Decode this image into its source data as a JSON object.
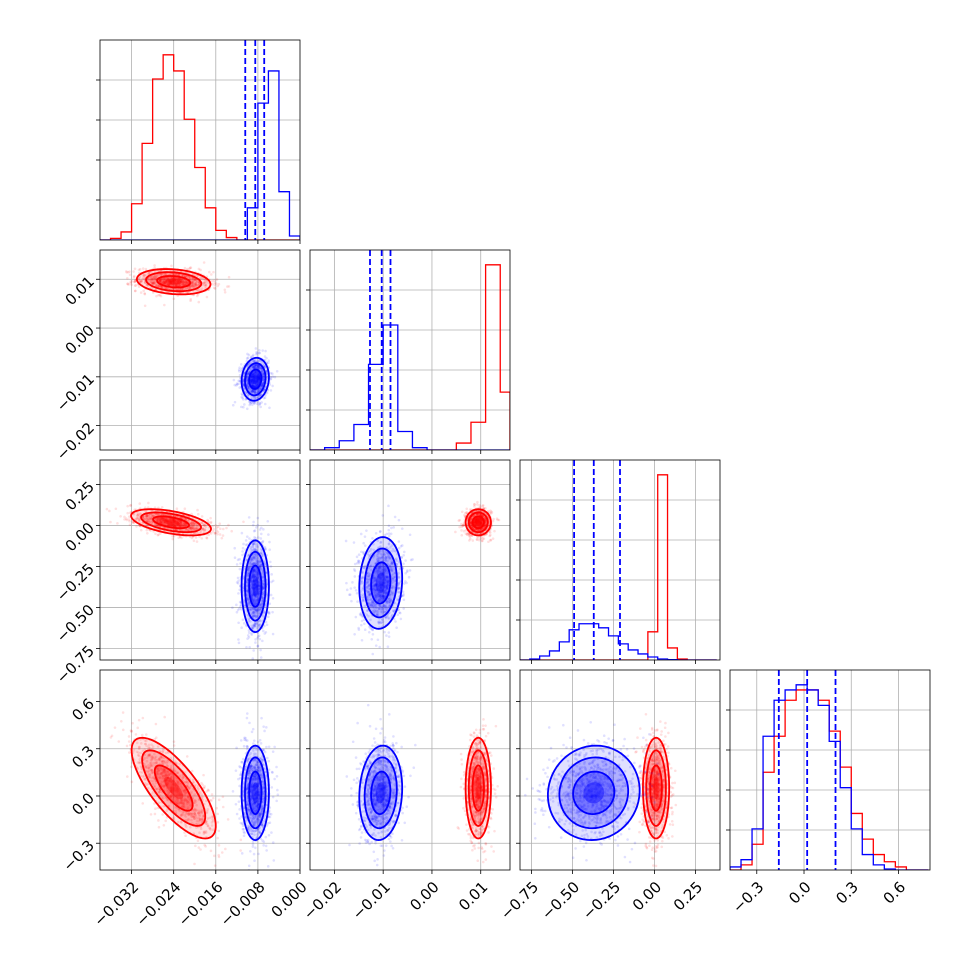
{
  "chart_data": {
    "type": "corner",
    "title": "",
    "parameters": [
      "",
      "",
      "",
      ""
    ],
    "series": [
      {
        "name": "",
        "color": "#ff0000"
      },
      {
        "name": "",
        "color": "#0000ff"
      }
    ],
    "grid": true,
    "axes": [
      {
        "range": [
          -0.038,
          0.0
        ],
        "ticks": [
          -0.032,
          -0.024,
          -0.016,
          -0.008,
          0.0
        ],
        "tick_labels": [
          "−0.032",
          "−0.024",
          "−0.016",
          "−0.008",
          "0.000"
        ]
      },
      {
        "range": [
          -0.025,
          0.016
        ],
        "ticks": [
          -0.02,
          -0.01,
          0.0,
          0.01
        ],
        "tick_labels": [
          "−0.02",
          "−0.01",
          "0.00",
          "0.01"
        ]
      },
      {
        "range": [
          -0.82,
          0.4
        ],
        "ticks": [
          -0.75,
          -0.5,
          -0.25,
          0.0,
          0.25
        ],
        "tick_labels": [
          "−0.75",
          "−0.50",
          "−0.25",
          "0.00",
          "0.25"
        ]
      },
      {
        "range": [
          -0.47,
          0.8
        ],
        "ticks": [
          -0.3,
          0.0,
          0.3,
          0.6
        ],
        "tick_labels": [
          "−0.3",
          "0.0",
          "0.3",
          "0.6"
        ]
      }
    ],
    "quantiles_blue": [
      [
        -0.0104,
        -0.0085,
        -0.0068
      ],
      [
        -0.0127,
        -0.0103,
        -0.0085
      ],
      [
        -0.49,
        -0.37,
        -0.21
      ],
      [
        -0.16,
        0.02,
        0.2
      ]
    ],
    "marginals": [
      {
        "bin_edges": [
          -0.038,
          -0.036,
          -0.034,
          -0.032,
          -0.03,
          -0.028,
          -0.026,
          -0.024,
          -0.022,
          -0.02,
          -0.018,
          -0.016,
          -0.014,
          -0.012,
          -0.01,
          -0.008,
          -0.006,
          -0.004,
          -0.002,
          0.0
        ],
        "red": [
          0,
          2,
          10,
          45,
          120,
          200,
          230,
          210,
          150,
          90,
          40,
          12,
          3,
          0,
          0,
          0,
          0,
          0,
          0
        ],
        "blue": [
          0,
          0,
          0,
          0,
          0,
          0,
          0,
          0,
          0,
          0,
          0,
          0,
          0,
          0,
          40,
          170,
          210,
          60,
          5
        ]
      },
      {
        "bin_edges": [
          -0.025,
          -0.022,
          -0.019,
          -0.016,
          -0.013,
          -0.01,
          -0.007,
          -0.004,
          -0.001,
          0.002,
          0.005,
          0.008,
          0.011,
          0.014,
          0.016
        ],
        "red": [
          0,
          0,
          0,
          0,
          0,
          0,
          0,
          0,
          0,
          0,
          30,
          120,
          800,
          250
        ],
        "blue": [
          0,
          10,
          40,
          110,
          370,
          540,
          80,
          10,
          0,
          0,
          0,
          0,
          0,
          0
        ]
      },
      {
        "bin_edges": [
          -0.82,
          -0.76,
          -0.7,
          -0.64,
          -0.58,
          -0.52,
          -0.46,
          -0.4,
          -0.34,
          -0.28,
          -0.22,
          -0.16,
          -0.1,
          -0.04,
          0.02,
          0.08,
          0.14,
          0.2,
          0.26,
          0.32,
          0.38
        ],
        "red": [
          0,
          0,
          0,
          0,
          0,
          0,
          0,
          0,
          0,
          0,
          0,
          0,
          0,
          140,
          920,
          60,
          5,
          0,
          0,
          0
        ],
        "blue": [
          0,
          5,
          20,
          45,
          90,
          150,
          180,
          180,
          160,
          120,
          80,
          50,
          30,
          15,
          5,
          2,
          0,
          0,
          0,
          0
        ]
      },
      {
        "bin_edges": [
          -0.47,
          -0.4,
          -0.33,
          -0.26,
          -0.19,
          -0.12,
          -0.05,
          0.02,
          0.09,
          0.16,
          0.23,
          0.3,
          0.37,
          0.44,
          0.51,
          0.58,
          0.65,
          0.72,
          0.79
        ],
        "red": [
          0,
          5,
          25,
          95,
          130,
          165,
          175,
          175,
          165,
          135,
          100,
          55,
          30,
          15,
          8,
          3,
          0,
          0
        ],
        "blue": [
          3,
          10,
          40,
          130,
          165,
          175,
          180,
          175,
          160,
          125,
          80,
          40,
          15,
          5,
          1,
          0,
          0,
          0
        ]
      }
    ],
    "scatter_clouds": [
      {
        "pair": [
          0,
          1
        ],
        "red": {
          "center": [
            -0.024,
            0.0095
          ],
          "sd": [
            0.0035,
            0.0013
          ],
          "corr": -0.2
        },
        "blue": {
          "center": [
            -0.0085,
            -0.0105
          ],
          "sd": [
            0.0013,
            0.0022
          ],
          "corr": 0.1
        }
      },
      {
        "pair": [
          0,
          2
        ],
        "red": {
          "center": [
            -0.0245,
            0.02
          ],
          "sd": [
            0.0038,
            0.04
          ],
          "corr": -0.5
        },
        "blue": {
          "center": [
            -0.0085,
            -0.37
          ],
          "sd": [
            0.0013,
            0.14
          ],
          "corr": 0.0
        }
      },
      {
        "pair": [
          1,
          2
        ],
        "red": {
          "center": [
            0.0095,
            0.02
          ],
          "sd": [
            0.0013,
            0.04
          ],
          "corr": 0.0
        },
        "blue": {
          "center": [
            -0.0105,
            -0.35
          ],
          "sd": [
            0.0022,
            0.14
          ],
          "corr": 0.1
        }
      },
      {
        "pair": [
          0,
          3
        ],
        "red": {
          "center": [
            -0.024,
            0.05
          ],
          "sd": [
            0.004,
            0.16
          ],
          "corr": -0.75
        },
        "blue": {
          "center": [
            -0.0085,
            0.02
          ],
          "sd": [
            0.0013,
            0.15
          ],
          "corr": 0.0
        }
      },
      {
        "pair": [
          1,
          3
        ],
        "red": {
          "center": [
            0.0095,
            0.05
          ],
          "sd": [
            0.0013,
            0.16
          ],
          "corr": 0.0
        },
        "blue": {
          "center": [
            -0.0105,
            0.02
          ],
          "sd": [
            0.0022,
            0.15
          ],
          "corr": 0.1
        }
      },
      {
        "pair": [
          2,
          3
        ],
        "red": {
          "center": [
            0.01,
            0.05
          ],
          "sd": [
            0.04,
            0.16
          ],
          "corr": 0.0
        },
        "blue": {
          "center": [
            -0.37,
            0.02
          ],
          "sd": [
            0.14,
            0.15
          ],
          "corr": 0.05
        }
      }
    ]
  }
}
